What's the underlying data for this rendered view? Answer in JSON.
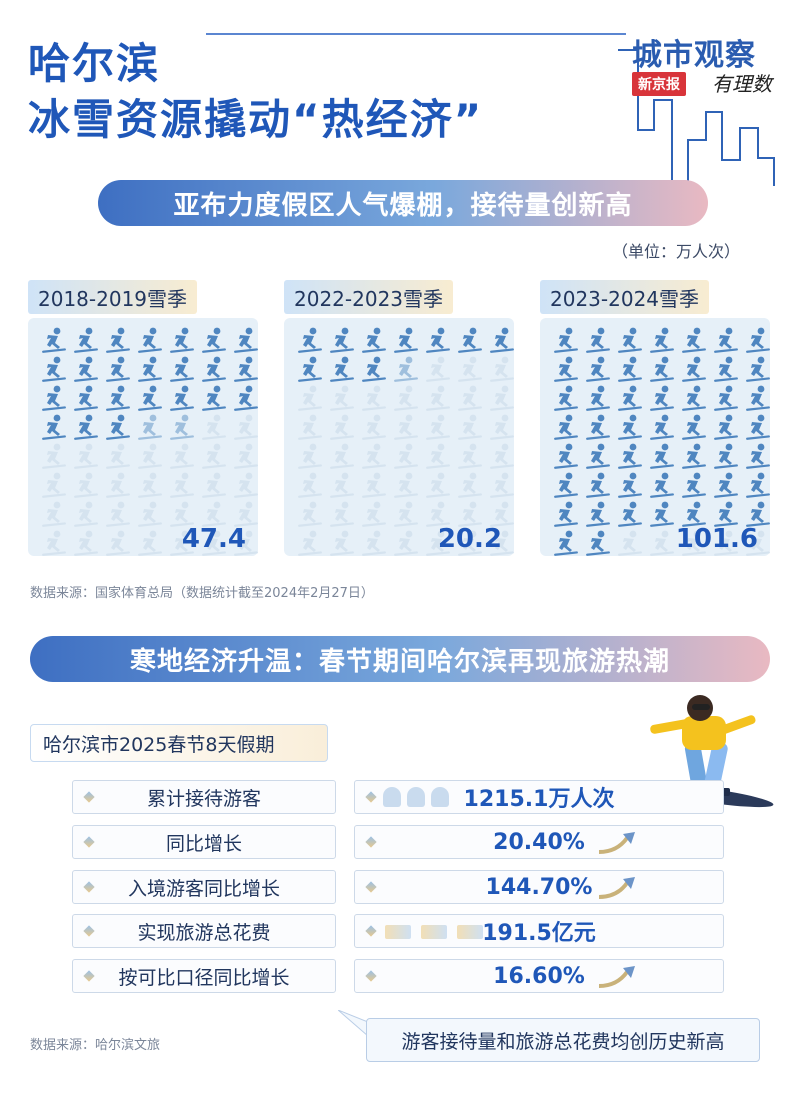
{
  "title": {
    "line1": "哈尔滨",
    "line2": "冰雪资源撬动“热经济”"
  },
  "brand": {
    "name": "城市观察",
    "tag": "新京报",
    "script": "有理数"
  },
  "section1": {
    "banner": "亚布力度假区人气爆棚，接待量创新高",
    "unit": "（单位：万人次）",
    "seasons": [
      {
        "label": "2018-2019雪季",
        "value": "47.4",
        "filled": 24,
        "partial": 2
      },
      {
        "label": "2022-2023雪季",
        "value": "20.2",
        "filled": 10,
        "partial": 1
      },
      {
        "label": "2023-2024雪季",
        "value": "101.6",
        "filled": 51,
        "partial": 0
      }
    ],
    "source": "数据来源：国家体育总局（数据统计截至2024年2月27日）"
  },
  "section2": {
    "banner": "寒地经济升温：春节期间哈尔滨再现旅游热潮",
    "subheader": "哈尔滨市2025春节8天假期",
    "rows": [
      {
        "label": "累计接待游客",
        "value": "1215.1万人次"
      },
      {
        "label": "同比增长",
        "value": "20.40%"
      },
      {
        "label": "入境游客同比增长",
        "value": "144.70%"
      },
      {
        "label": "实现旅游总花费",
        "value": "191.5亿元"
      },
      {
        "label": "按可比口径同比增长",
        "value": "16.60%"
      }
    ],
    "note": "游客接待量和旅游总花费均创历史新高",
    "source": "数据来源：哈尔滨文旅"
  },
  "colors": {
    "primary": "#1f57b8",
    "accent_red": "#d8343a",
    "icon_on": "#4f86c0",
    "icon_off": "#d5e3ef"
  },
  "icons": {
    "skier": "skier-icon",
    "person": "person-icon",
    "banknote": "banknote-icon",
    "trend": "trend-up-arrow-icon"
  }
}
